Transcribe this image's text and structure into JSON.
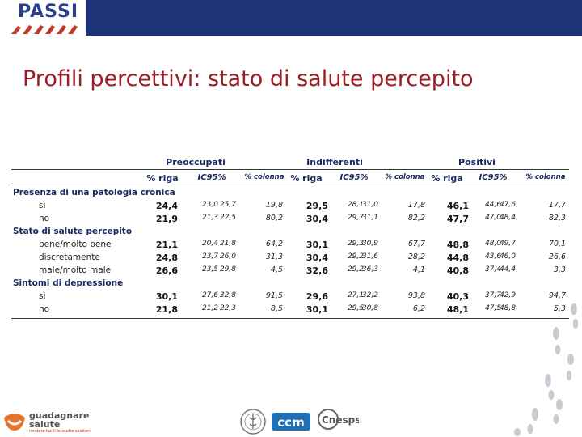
{
  "header": {
    "logo_text": "PASSI"
  },
  "title": "Profili percettivi: stato di salute percepito",
  "table": {
    "groups": [
      "Preoccupati",
      "Indifferenti",
      "Positivi"
    ],
    "subheaders": {
      "pct_riga": "% riga",
      "ic95": "IC95%",
      "pct_colonna": "% colonna"
    },
    "sections": [
      {
        "title": "Presenza di una patologia cronica",
        "rows": [
          {
            "label": "sì",
            "values": [
              "24,4",
              "23,0",
              "25,7",
              "19,8",
              "29,5",
              "28,1",
              "31,0",
              "17,8",
              "46,1",
              "44,6",
              "47,6",
              "17,7"
            ]
          },
          {
            "label": "no",
            "values": [
              "21,9",
              "21,3",
              "22,5",
              "80,2",
              "30,4",
              "29,7",
              "31,1",
              "82,2",
              "47,7",
              "47,0",
              "48,4",
              "82,3"
            ]
          }
        ]
      },
      {
        "title": "Stato di salute percepito",
        "rows": [
          {
            "label": "bene/molto bene",
            "values": [
              "21,1",
              "20,4",
              "21,8",
              "64,2",
              "30,1",
              "29,3",
              "30,9",
              "67,7",
              "48,8",
              "48,0",
              "49,7",
              "70,1"
            ]
          },
          {
            "label": "discretamente",
            "values": [
              "24,8",
              "23,7",
              "26,0",
              "31,3",
              "30,4",
              "29,2",
              "31,6",
              "28,2",
              "44,8",
              "43,6",
              "46,0",
              "26,6"
            ]
          },
          {
            "label": "male/molto male",
            "values": [
              "26,6",
              "23,5",
              "29,8",
              "4,5",
              "32,6",
              "29,2",
              "36,3",
              "4,1",
              "40,8",
              "37,4",
              "44,4",
              "3,3"
            ]
          }
        ]
      },
      {
        "title": "Sintomi di depressione",
        "rows": [
          {
            "label": "sì",
            "values": [
              "30,1",
              "27,6",
              "32,8",
              "91,5",
              "29,6",
              "27,1",
              "32,2",
              "93,8",
              "40,3",
              "37,7",
              "42,9",
              "94,7"
            ]
          },
          {
            "label": "no",
            "values": [
              "21,8",
              "21,2",
              "22,3",
              "8,5",
              "30,1",
              "29,5",
              "30,8",
              "6,2",
              "48,1",
              "47,5",
              "48,8",
              "5,3"
            ]
          }
        ]
      }
    ]
  },
  "footer": {
    "guadagnare_line1": "guadagnare",
    "guadagnare_line2": "salute",
    "guadagnare_tagline": "rendere facili le scelte salutari",
    "ccm": "ccm",
    "cnesps": "Cnesps"
  },
  "colors": {
    "navy": "#1f3478",
    "title_red": "#9b1c22",
    "header_blue": "#1a2a60"
  }
}
